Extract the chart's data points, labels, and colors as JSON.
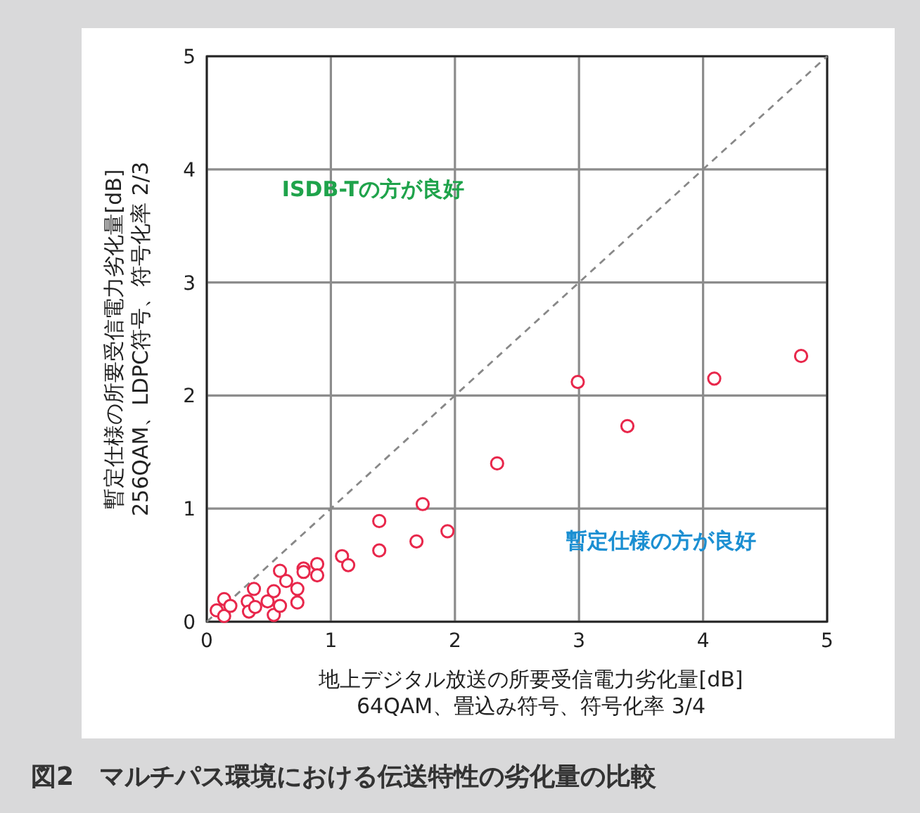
{
  "chart_data": {
    "type": "scatter",
    "title": "図2　マルチパス環境における伝送特性の劣化量の比較",
    "xlabel": "地上デジタル放送の所要受信電力劣化量[dB]\n64QAM、畳込み符号、符号化率 3/4",
    "ylabel": "暫定仕様の所要受信電力劣化量[dB]\n256QAM、LDPC符号、符号化率 2/3",
    "xlim": [
      0,
      5
    ],
    "ylim": [
      0,
      5
    ],
    "xticks": [
      0,
      1,
      2,
      3,
      4,
      5
    ],
    "yticks": [
      0,
      1,
      2,
      3,
      4,
      5
    ],
    "grid": true,
    "annotations": [
      "ISDB-Tの方が良好",
      "暫定仕様の方が良好"
    ],
    "series": [
      {
        "type": "line",
        "color": "#888888",
        "line_style": "dashed",
        "x": [
          0,
          5
        ],
        "values": [
          0,
          5
        ]
      },
      {
        "color": "#e8274b",
        "marker": "circle",
        "x": [
          0.08,
          0.14,
          0.14,
          0.19,
          0.33,
          0.34,
          0.38,
          0.39,
          0.49,
          0.54,
          0.54,
          0.59,
          0.59,
          0.64,
          0.73,
          0.73,
          0.78,
          0.78,
          0.89,
          0.89,
          1.09,
          1.14,
          1.39,
          1.39,
          1.69,
          1.74,
          1.94,
          2.34,
          2.99,
          3.39,
          4.09,
          4.79
        ],
        "values": [
          0.1,
          0.2,
          0.05,
          0.14,
          0.18,
          0.09,
          0.29,
          0.13,
          0.18,
          0.27,
          0.06,
          0.14,
          0.45,
          0.36,
          0.29,
          0.17,
          0.47,
          0.44,
          0.51,
          0.41,
          0.58,
          0.5,
          0.89,
          0.63,
          0.71,
          1.04,
          0.8,
          1.4,
          2.12,
          1.73,
          2.15,
          2.35
        ]
      }
    ]
  }
}
